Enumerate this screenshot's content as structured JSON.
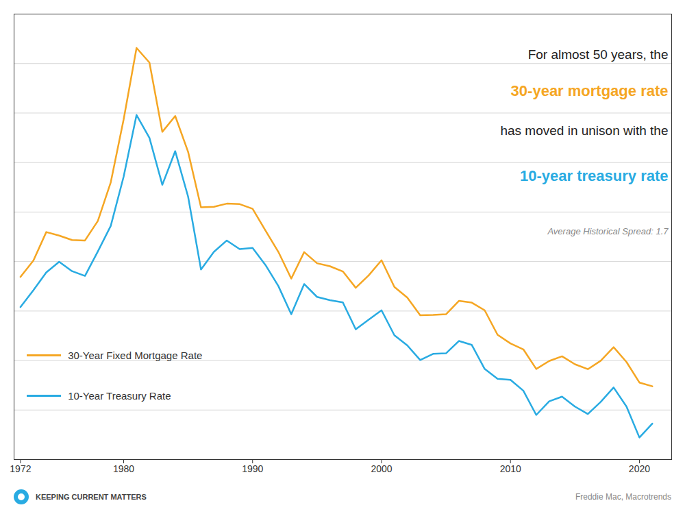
{
  "chart_data": {
    "type": "line",
    "annotations": [
      {
        "text": "For almost 50 years, the"
      },
      {
        "text": "30-year mortgage rate",
        "color": "#F5A623"
      },
      {
        "text": "has moved in unison with the"
      },
      {
        "text": "10-year treasury rate",
        "color": "#29ABE2"
      },
      {
        "text": "Average Historical Spread: 1.7"
      }
    ],
    "source": "Freddie Mac, Macrotrends",
    "brand": "KEEPING CURRENT MATTERS",
    "x": [
      1972,
      1973,
      1974,
      1975,
      1976,
      1977,
      1978,
      1979,
      1980,
      1981,
      1982,
      1983,
      1984,
      1985,
      1986,
      1987,
      1988,
      1989,
      1990,
      1991,
      1992,
      1993,
      1994,
      1995,
      1996,
      1997,
      1998,
      1999,
      2000,
      2001,
      2002,
      2003,
      2004,
      2005,
      2006,
      2007,
      2008,
      2009,
      2010,
      2011,
      2012,
      2013,
      2014,
      2015,
      2016,
      2017,
      2018,
      2019,
      2020,
      2021
    ],
    "series": [
      {
        "name": "30-Year Fixed Mortgage Rate",
        "color": "#F5A623",
        "values": [
          7.38,
          8.04,
          9.19,
          9.05,
          8.87,
          8.85,
          9.64,
          11.2,
          13.74,
          16.63,
          16.04,
          13.24,
          13.88,
          12.43,
          10.19,
          10.21,
          10.34,
          10.32,
          10.13,
          9.25,
          8.39,
          7.31,
          8.38,
          7.93,
          7.81,
          7.6,
          6.94,
          7.44,
          8.05,
          6.97,
          6.54,
          5.83,
          5.84,
          5.87,
          6.41,
          6.34,
          6.03,
          5.04,
          4.69,
          4.45,
          3.66,
          3.98,
          4.17,
          3.85,
          3.65,
          3.99,
          4.54,
          3.94,
          3.11,
          2.96
        ]
      },
      {
        "name": "10-Year Treasury Rate",
        "color": "#29ABE2",
        "values": [
          6.16,
          6.84,
          7.56,
          7.99,
          7.61,
          7.42,
          8.41,
          9.44,
          11.43,
          13.92,
          13.0,
          11.1,
          12.46,
          10.62,
          7.68,
          8.39,
          8.85,
          8.5,
          8.55,
          7.86,
          7.01,
          5.87,
          7.09,
          6.57,
          6.44,
          6.35,
          5.26,
          5.65,
          6.03,
          5.02,
          4.61,
          4.02,
          4.27,
          4.29,
          4.79,
          4.63,
          3.66,
          3.26,
          3.22,
          2.78,
          1.8,
          2.35,
          2.54,
          2.14,
          1.84,
          2.33,
          2.91,
          2.14,
          0.89,
          1.45
        ]
      }
    ],
    "xlim": [
      1971.5,
      2022.5
    ],
    "xticks": [
      1972,
      1980,
      1990,
      2000,
      2010,
      2020
    ],
    "ylim": [
      0,
      18
    ],
    "yticks": [
      0,
      2,
      4,
      6,
      8,
      10,
      12,
      14,
      16,
      18
    ],
    "tick_labels": "x",
    "grid": true,
    "legend": "lower left"
  }
}
